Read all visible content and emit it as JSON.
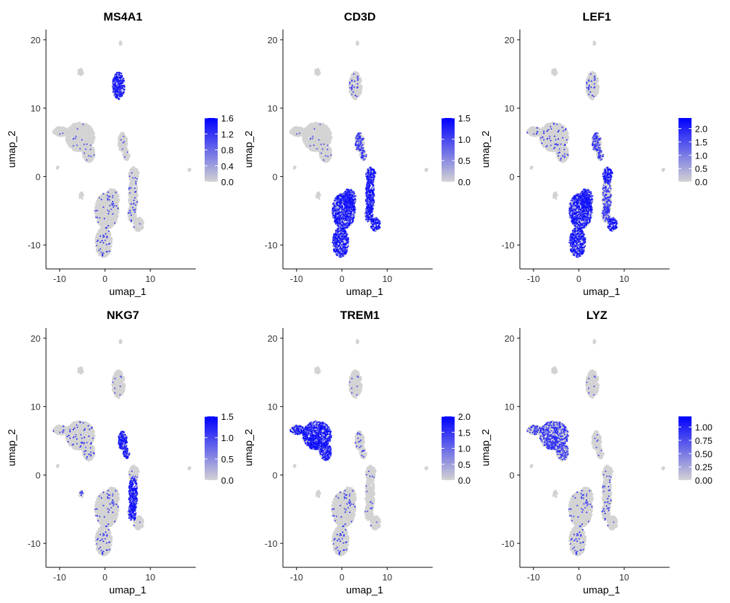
{
  "chart_data": [
    {
      "type": "scatter",
      "title": "MS4A1",
      "xlabel": "umap_1",
      "ylabel": "umap_2",
      "xticks": [
        "-10",
        "0",
        "10"
      ],
      "yticks": [
        "-10",
        "0",
        "10",
        "20"
      ],
      "xlim": [
        -13,
        20
      ],
      "ylim": [
        -13.5,
        21.5
      ],
      "color_low": "#d3d3d3",
      "color_high": "#0000ff",
      "legend": {
        "max": 1.6,
        "ticks": [
          "1.6",
          "1.2",
          "0.8",
          "0.4",
          "0.0"
        ],
        "tick_values": [
          1.6,
          1.2,
          0.8,
          0.4,
          0.0
        ]
      },
      "expression_high_in": [
        "B"
      ],
      "expression_mid_in": [],
      "scattered_in": [
        "T_left",
        "T_right"
      ]
    },
    {
      "type": "scatter",
      "title": "CD3D",
      "xlabel": "umap_1",
      "ylabel": "umap_2",
      "xticks": [
        "-10",
        "0",
        "10"
      ],
      "yticks": [
        "-10",
        "0",
        "10",
        "20"
      ],
      "xlim": [
        -13,
        20
      ],
      "ylim": [
        -13.5,
        21.5
      ],
      "color_low": "#d3d3d3",
      "color_high": "#0000ff",
      "legend": {
        "max": 1.5,
        "ticks": [
          "1.5",
          "1.0",
          "0.5",
          "0.0"
        ],
        "tick_values": [
          1.5,
          1.0,
          0.5,
          0.0
        ]
      },
      "expression_high_in": [
        "T_left",
        "T_right",
        "T_right_tip",
        "T_mid"
      ],
      "expression_mid_in": [
        "NK"
      ],
      "scattered_in": [
        "B"
      ]
    },
    {
      "type": "scatter",
      "title": "LEF1",
      "xlabel": "umap_1",
      "ylabel": "umap_2",
      "xticks": [
        "-10",
        "0",
        "10"
      ],
      "yticks": [
        "-10",
        "0",
        "10",
        "20"
      ],
      "xlim": [
        -13,
        20
      ],
      "ylim": [
        -13.5,
        21.5
      ],
      "color_low": "#d3d3d3",
      "color_high": "#0000ff",
      "legend": {
        "max": 2.4,
        "ticks": [
          "2.0",
          "1.5",
          "1.0",
          "0.5",
          "0.0"
        ],
        "tick_values": [
          2.0,
          1.5,
          1.0,
          0.5,
          0.0
        ]
      },
      "expression_high_in": [
        "T_left",
        "T_mid",
        "T_right_tip"
      ],
      "expression_mid_in": [
        "T_right",
        "NK"
      ],
      "scattered_in": [
        "Mono",
        "B"
      ]
    },
    {
      "type": "scatter",
      "title": "NKG7",
      "xlabel": "umap_1",
      "ylabel": "umap_2",
      "xticks": [
        "-10",
        "0",
        "10"
      ],
      "yticks": [
        "-10",
        "0",
        "10",
        "20"
      ],
      "xlim": [
        -13,
        20
      ],
      "ylim": [
        -13.5,
        21.5
      ],
      "color_low": "#d3d3d3",
      "color_high": "#0000ff",
      "legend": {
        "max": 1.5,
        "ticks": [
          "1.5",
          "1.0",
          "0.5",
          "0.0"
        ],
        "tick_values": [
          1.5,
          1.0,
          0.5,
          0.0
        ]
      },
      "expression_high_in": [
        "NK",
        "T_right"
      ],
      "expression_mid_in": [
        "small"
      ],
      "scattered_in": [
        "T_left",
        "Mono"
      ]
    },
    {
      "type": "scatter",
      "title": "TREM1",
      "xlabel": "umap_1",
      "ylabel": "umap_2",
      "xticks": [
        "-10",
        "0",
        "10"
      ],
      "yticks": [
        "-10",
        "0",
        "10",
        "20"
      ],
      "xlim": [
        -13,
        20
      ],
      "ylim": [
        -13.5,
        21.5
      ],
      "color_low": "#d3d3d3",
      "color_high": "#0000ff",
      "legend": {
        "max": 2.0,
        "ticks": [
          "2.0",
          "1.5",
          "1.0",
          "0.5",
          "0.0"
        ],
        "tick_values": [
          2.0,
          1.5,
          1.0,
          0.5,
          0.0
        ]
      },
      "expression_high_in": [
        "Mono",
        "Mono_tip"
      ],
      "expression_mid_in": [],
      "scattered_in": [
        "T_left",
        "NK"
      ]
    },
    {
      "type": "scatter",
      "title": "LYZ",
      "xlabel": "umap_1",
      "ylabel": "umap_2",
      "xticks": [
        "-10",
        "0",
        "10"
      ],
      "yticks": [
        "-10",
        "0",
        "10",
        "20"
      ],
      "xlim": [
        -13,
        20
      ],
      "ylim": [
        -13.5,
        21.5
      ],
      "color_low": "#d3d3d3",
      "color_high": "#0000ff",
      "legend": {
        "max": 1.2,
        "ticks": [
          "1.00",
          "0.75",
          "0.50",
          "0.25",
          "0.00"
        ],
        "tick_values": [
          1.0,
          0.75,
          0.5,
          0.25,
          0.0
        ]
      },
      "expression_high_in": [],
      "expression_mid_in": [
        "Mono",
        "Mono_tip"
      ],
      "scattered_in": [
        "T_left",
        "T_right"
      ]
    }
  ]
}
